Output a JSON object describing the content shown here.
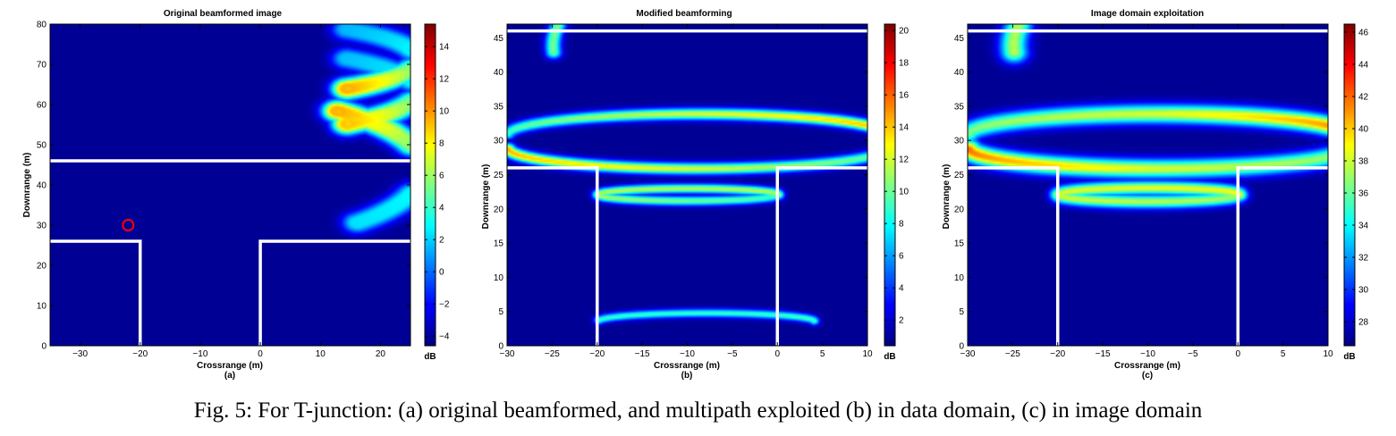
{
  "caption": "Fig. 5: For T-junction: (a) original beamformed, and multipath exploited (b) in data domain, (c) in image domain",
  "chart_data": [
    {
      "type": "heatmap",
      "title": "Original beamformed image",
      "sublabel": "(a)",
      "xlabel": "Crossrange (m)",
      "ylabel": "Downrange (m)",
      "xlim": [
        -35,
        25
      ],
      "ylim": [
        0,
        80
      ],
      "xticks": [
        -30,
        -20,
        -10,
        0,
        10,
        20
      ],
      "yticks": [
        0,
        10,
        20,
        30,
        40,
        50,
        60,
        70,
        80
      ],
      "colorbar": {
        "label": "dB",
        "range": [
          -4.6,
          15.4
        ],
        "ticks": [
          -4,
          -2,
          0,
          2,
          4,
          6,
          8,
          10,
          12,
          14
        ]
      },
      "walls": [
        {
          "points": [
            [
              -35,
              46
            ],
            [
              25,
              46
            ]
          ]
        },
        {
          "points": [
            [
              -35,
              26
            ],
            [
              -20,
              26
            ],
            [
              -20,
              0
            ]
          ]
        },
        {
          "points": [
            [
              0,
              0
            ],
            [
              0,
              26
            ],
            [
              25,
              26
            ]
          ]
        }
      ],
      "marker": {
        "x": -22,
        "y": 30,
        "shape": "circle",
        "color": "#ff0000"
      },
      "arcs": [
        {
          "cx": -10,
          "cy": 71.5,
          "a": 36,
          "b": 10,
          "th0": -0.83,
          "th1": 0.83,
          "w": 1.4,
          "split": 0.35,
          "peak": [
            1.0,
            0.3,
            0.1
          ],
          "peakPos": 0.2
        },
        {
          "cx": -10,
          "cy": 63.5,
          "a": 36,
          "b": 11,
          "th0": -0.83,
          "th1": 0.83,
          "w": 1.4,
          "split": 0.35,
          "peak": [
            0.95,
            0.3,
            0.12
          ],
          "peakPos": 0.2
        },
        {
          "cx": -10,
          "cy": 44,
          "a": 37,
          "b": 18.5,
          "th0": -0.79,
          "th1": 0.91,
          "w": 1.4,
          "split": 0.35,
          "peak": [
            0.2,
            0.3,
            1.0
          ],
          "peakPos": 0.88
        }
      ]
    },
    {
      "type": "heatmap",
      "title": "Modified beamforming",
      "sublabel": "(b)",
      "xlabel": "Crossrange (m)",
      "ylabel": "Downrange (m)",
      "xlim": [
        -30,
        10
      ],
      "ylim": [
        0,
        47
      ],
      "xticks": [
        -30,
        -25,
        -20,
        -15,
        -10,
        -5,
        0,
        5,
        10
      ],
      "yticks": [
        0,
        5,
        10,
        15,
        20,
        25,
        30,
        35,
        40,
        45
      ],
      "colorbar": {
        "label": "dB",
        "range": [
          0.4,
          20.4
        ],
        "ticks": [
          2,
          4,
          6,
          8,
          10,
          12,
          14,
          16,
          18,
          20
        ]
      },
      "walls": [
        {
          "points": [
            [
              -30,
              46
            ],
            [
              10,
              46
            ]
          ]
        },
        {
          "points": [
            [
              -30,
              26
            ],
            [
              -20,
              26
            ],
            [
              -20,
              0
            ]
          ]
        },
        {
          "points": [
            [
              0,
              0
            ],
            [
              0,
              26
            ],
            [
              10,
              26
            ]
          ]
        }
      ],
      "arcs": [
        {
          "cx": 12,
          "cy": 44,
          "a": 37,
          "b": 17,
          "th0": 2.15,
          "th1": 3.2,
          "w": 0.5,
          "split": 0,
          "peak": [
            0.75,
            0.2,
            0.2
          ],
          "peakPos": 0.55
        },
        {
          "cx": -9,
          "cy": 31,
          "a": 21,
          "b": 3,
          "th0": 0.05,
          "th1": 3.1,
          "w": 0.45,
          "split": 0,
          "peak": [
            0.55,
            0.35,
            0.1
          ],
          "peakPos": 0.5
        },
        {
          "cx": -9,
          "cy": 29,
          "a": 21,
          "b": 3,
          "th0": 3.2,
          "th1": 6.2,
          "w": 0.45,
          "split": 0,
          "peak": [
            0.55,
            0.35,
            0.1
          ],
          "peakPos": 0.5
        },
        {
          "cx": -10,
          "cy": 22.2,
          "a": 10,
          "b": 0.9,
          "th0": 0,
          "th1": 6.283,
          "w": 0.35,
          "split": 0,
          "peak": [
            0.3,
            0.3,
            0.1
          ],
          "peakPos": 0.2
        },
        {
          "cx": -8,
          "cy": 3.7,
          "a": 12,
          "b": 1.2,
          "th0": 0.05,
          "th1": 3.0,
          "w": 0.3,
          "split": 0,
          "peak": [
            0.12,
            0.1,
            0.1
          ],
          "peakPos": 0.5
        }
      ]
    },
    {
      "type": "heatmap",
      "title": "Image domain exploitation",
      "sublabel": "(c)",
      "xlabel": "Crossrange (m)",
      "ylabel": "Downrange (m)",
      "xlim": [
        -30,
        10
      ],
      "ylim": [
        0,
        47
      ],
      "xticks": [
        -30,
        -25,
        -20,
        -15,
        -10,
        -5,
        0,
        5,
        10
      ],
      "yticks": [
        0,
        5,
        10,
        15,
        20,
        25,
        30,
        35,
        40,
        45
      ],
      "colorbar": {
        "label": "dB",
        "range": [
          26.5,
          46.5
        ],
        "ticks": [
          28,
          30,
          32,
          34,
          36,
          38,
          40,
          42,
          44,
          46
        ]
      },
      "walls": [
        {
          "points": [
            [
              -30,
              46
            ],
            [
              10,
              46
            ]
          ]
        },
        {
          "points": [
            [
              -30,
              26
            ],
            [
              -20,
              26
            ],
            [
              -20,
              0
            ]
          ]
        },
        {
          "points": [
            [
              0,
              0
            ],
            [
              0,
              26
            ],
            [
              10,
              26
            ]
          ]
        }
      ],
      "arcs": [
        {
          "cx": 12,
          "cy": 44,
          "a": 37,
          "b": 17,
          "th0": 2.15,
          "th1": 3.2,
          "w": 0.9,
          "split": 0,
          "peak": [
            0.8,
            0.25,
            0.3
          ],
          "peakPos": 0.55
        },
        {
          "cx": -9,
          "cy": 31,
          "a": 21,
          "b": 3,
          "th0": 0.05,
          "th1": 3.1,
          "w": 0.8,
          "split": 0,
          "peak": [
            0.65,
            0.35,
            0.2
          ],
          "peakPos": 0.5
        },
        {
          "cx": -9,
          "cy": 29,
          "a": 21,
          "b": 3,
          "th0": 3.2,
          "th1": 6.2,
          "w": 0.8,
          "split": 0,
          "peak": [
            0.65,
            0.35,
            0.2
          ],
          "peakPos": 0.5
        },
        {
          "cx": -10,
          "cy": 22.2,
          "a": 10,
          "b": 1.0,
          "th0": 0,
          "th1": 6.283,
          "w": 0.55,
          "split": 0,
          "peak": [
            0.4,
            0.35,
            0.25
          ],
          "peakPos": 0.25
        }
      ]
    }
  ]
}
